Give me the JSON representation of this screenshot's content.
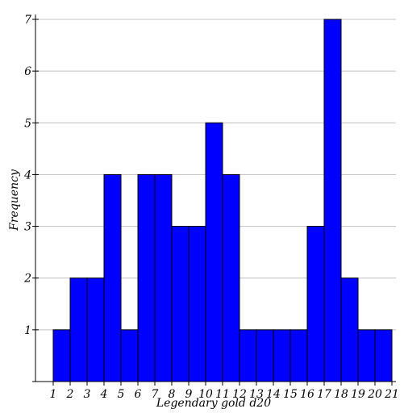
{
  "chart_data": {
    "type": "bar",
    "title": "",
    "xlabel": "Legendary gold d20",
    "ylabel": "Frequency",
    "x_ticks": [
      "1",
      "2",
      "3",
      "4",
      "5",
      "6",
      "7",
      "8",
      "9",
      "10",
      "11",
      "12",
      "13",
      "14",
      "15",
      "16",
      "17",
      "18",
      "19",
      "20",
      "21"
    ],
    "bins": [
      {
        "start": 1,
        "end": 2,
        "value": 1
      },
      {
        "start": 2,
        "end": 3,
        "value": 2
      },
      {
        "start": 3,
        "end": 4,
        "value": 2
      },
      {
        "start": 4,
        "end": 5,
        "value": 4
      },
      {
        "start": 5,
        "end": 6,
        "value": 1
      },
      {
        "start": 6,
        "end": 7,
        "value": 4
      },
      {
        "start": 7,
        "end": 8,
        "value": 4
      },
      {
        "start": 8,
        "end": 9,
        "value": 3
      },
      {
        "start": 9,
        "end": 10,
        "value": 3
      },
      {
        "start": 10,
        "end": 11,
        "value": 5
      },
      {
        "start": 11,
        "end": 12,
        "value": 4
      },
      {
        "start": 12,
        "end": 13,
        "value": 1
      },
      {
        "start": 13,
        "end": 14,
        "value": 1
      },
      {
        "start": 14,
        "end": 15,
        "value": 1
      },
      {
        "start": 15,
        "end": 16,
        "value": 1
      },
      {
        "start": 16,
        "end": 17,
        "value": 3
      },
      {
        "start": 17,
        "end": 18,
        "value": 7
      },
      {
        "start": 18,
        "end": 19,
        "value": 2
      },
      {
        "start": 19,
        "end": 20,
        "value": 1
      },
      {
        "start": 20,
        "end": 21,
        "value": 1
      }
    ],
    "y_ticks": [
      1,
      2,
      3,
      4,
      5,
      6,
      7
    ],
    "xlim": [
      0,
      21
    ],
    "ylim": [
      0,
      7
    ],
    "grid": true,
    "bar_color": "#0000ff",
    "legend": "none"
  }
}
